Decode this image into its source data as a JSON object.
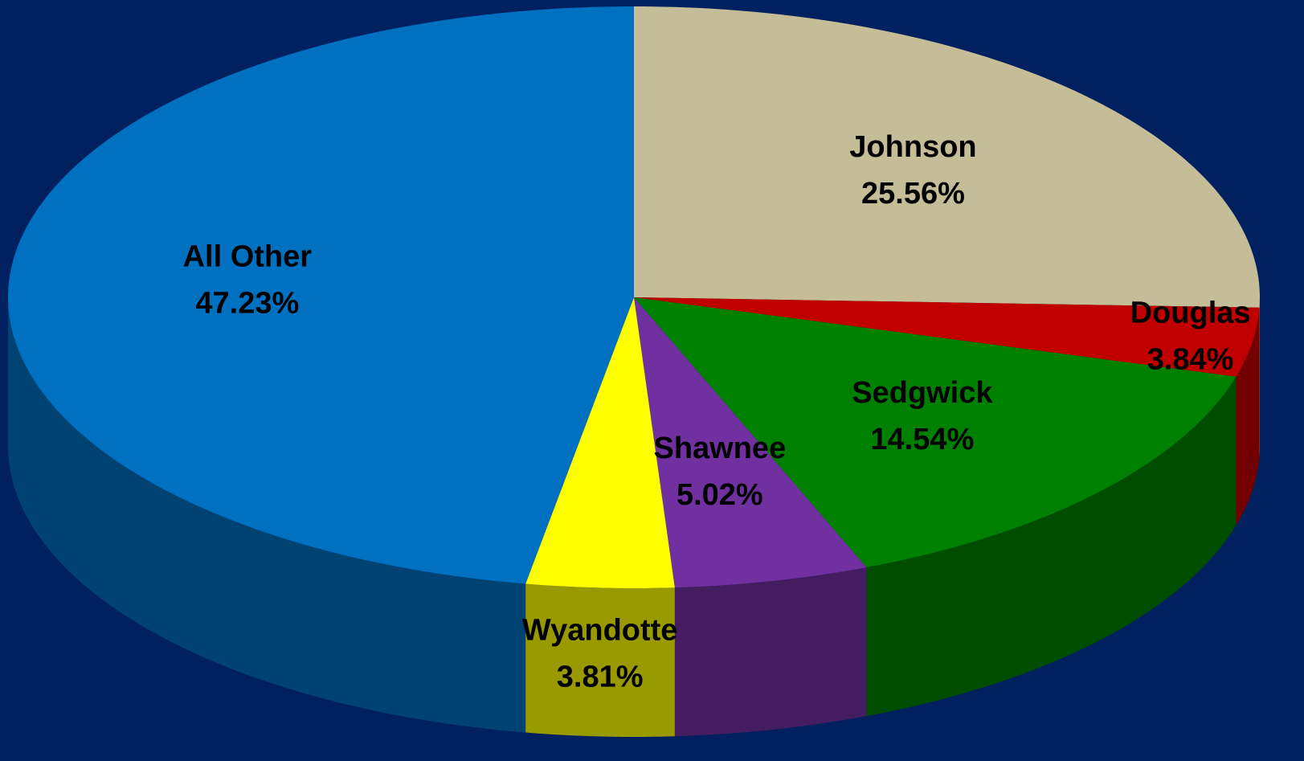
{
  "chart_data": {
    "type": "pie",
    "categories": [
      "Johnson",
      "Douglas",
      "Sedgwick",
      "Shawnee",
      "Wyandotte",
      "All Other"
    ],
    "values": [
      25.56,
      3.84,
      14.54,
      5.02,
      3.81,
      47.23
    ],
    "value_labels": [
      "25.56%",
      "3.84%",
      "14.54%",
      "5.02%",
      "3.81%",
      "47.23%"
    ],
    "colors": [
      "#c4bd97",
      "#c00000",
      "#008000",
      "#7030a0",
      "#ffff00",
      "#0070c0"
    ]
  }
}
